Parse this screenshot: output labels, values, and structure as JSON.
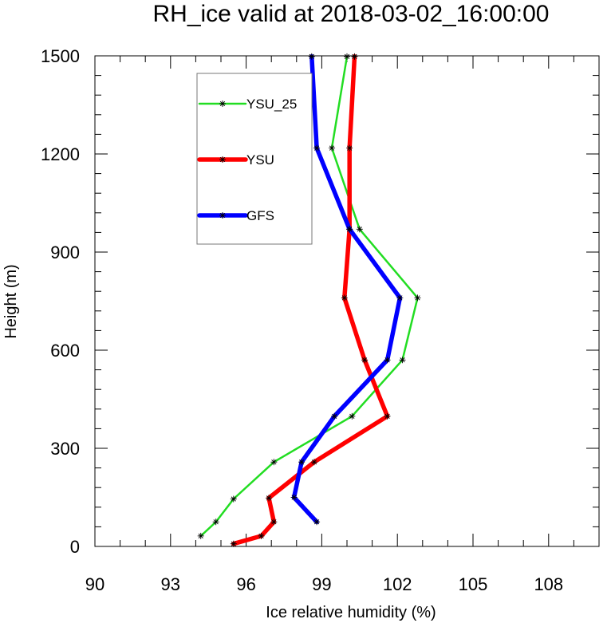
{
  "chart_data": {
    "type": "line",
    "title": "RH_ice valid at 2018-03-02_16:00:00",
    "xlabel": "Ice relative humidity (%)",
    "ylabel": "Height (m)",
    "xlim": [
      90,
      110
    ],
    "ylim": [
      0,
      1500
    ],
    "xticks": [
      90,
      93,
      96,
      99,
      102,
      105,
      108
    ],
    "yticks": [
      0,
      300,
      600,
      900,
      1200,
      1500
    ],
    "legend_position": "top-left",
    "series": [
      {
        "name": "YSU_25",
        "color": "#22dd22",
        "points": [
          [
            94.2,
            32
          ],
          [
            94.8,
            75
          ],
          [
            95.5,
            145
          ],
          [
            97.1,
            258
          ],
          [
            100.2,
            398
          ],
          [
            102.2,
            570
          ],
          [
            102.8,
            760
          ],
          [
            100.5,
            970
          ],
          [
            99.4,
            1218
          ],
          [
            100.0,
            1498
          ]
        ]
      },
      {
        "name": "YSU",
        "color": "#ff0000",
        "points": [
          [
            95.5,
            8
          ],
          [
            96.6,
            32
          ],
          [
            97.1,
            75
          ],
          [
            96.9,
            148
          ],
          [
            98.7,
            258
          ],
          [
            101.6,
            398
          ],
          [
            100.7,
            570
          ],
          [
            99.9,
            760
          ],
          [
            100.1,
            970
          ],
          [
            100.1,
            1218
          ],
          [
            100.3,
            1498
          ]
        ]
      },
      {
        "name": "GFS",
        "color": "#0000ff",
        "points": [
          [
            98.8,
            75
          ],
          [
            97.9,
            150
          ],
          [
            98.2,
            258
          ],
          [
            99.5,
            398
          ],
          [
            101.6,
            570
          ],
          [
            102.1,
            760
          ],
          [
            100.1,
            970
          ],
          [
            98.8,
            1218
          ],
          [
            98.6,
            1498
          ]
        ]
      }
    ]
  }
}
